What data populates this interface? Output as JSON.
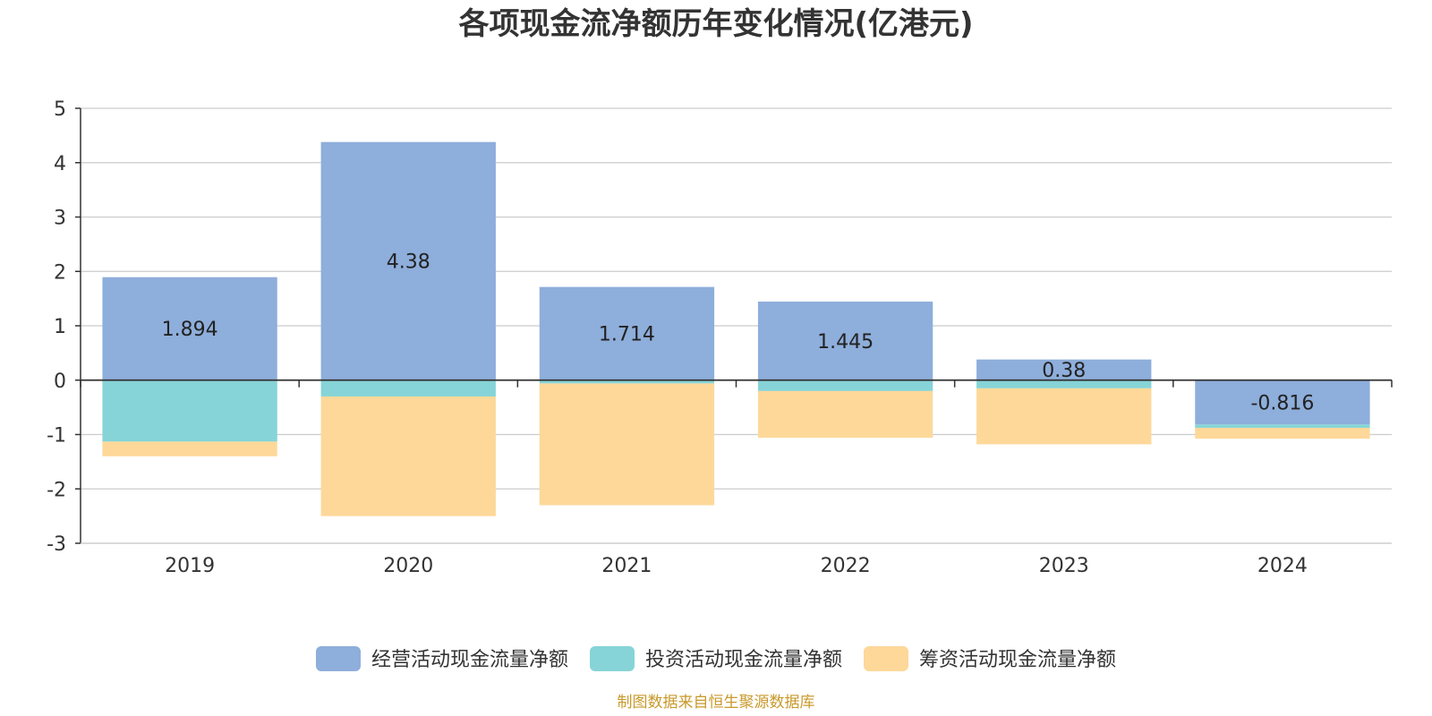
{
  "chart_data": {
    "type": "bar",
    "stacked": true,
    "title": "各项现金流净额历年变化情况(亿港元)",
    "categories": [
      "2019",
      "2020",
      "2021",
      "2022",
      "2023",
      "2024"
    ],
    "series": [
      {
        "name": "经营活动现金流量净额",
        "color": "#8eaedb",
        "values": [
          1.894,
          4.38,
          1.714,
          1.445,
          0.38,
          -0.816
        ],
        "labels": [
          "1.894",
          "4.38",
          "1.714",
          "1.445",
          "0.38",
          "-0.816"
        ]
      },
      {
        "name": "投资活动现金流量净额",
        "color": "#86d4d7",
        "values": [
          -1.13,
          -0.3,
          -0.06,
          -0.2,
          -0.15,
          -0.06
        ]
      },
      {
        "name": "筹资活动现金流量净额",
        "color": "#fdd899",
        "values": [
          -0.27,
          -2.2,
          -2.24,
          -0.86,
          -1.03,
          -0.2
        ]
      }
    ],
    "ylim": [
      -3,
      5
    ],
    "yticks": [
      5,
      4,
      3,
      2,
      1,
      0,
      -1,
      -2,
      -3
    ],
    "grid": true,
    "legend": "bottom-center",
    "xlabel": "",
    "ylabel": ""
  },
  "footer": {
    "source": "制图数据来自恒生聚源数据库"
  }
}
